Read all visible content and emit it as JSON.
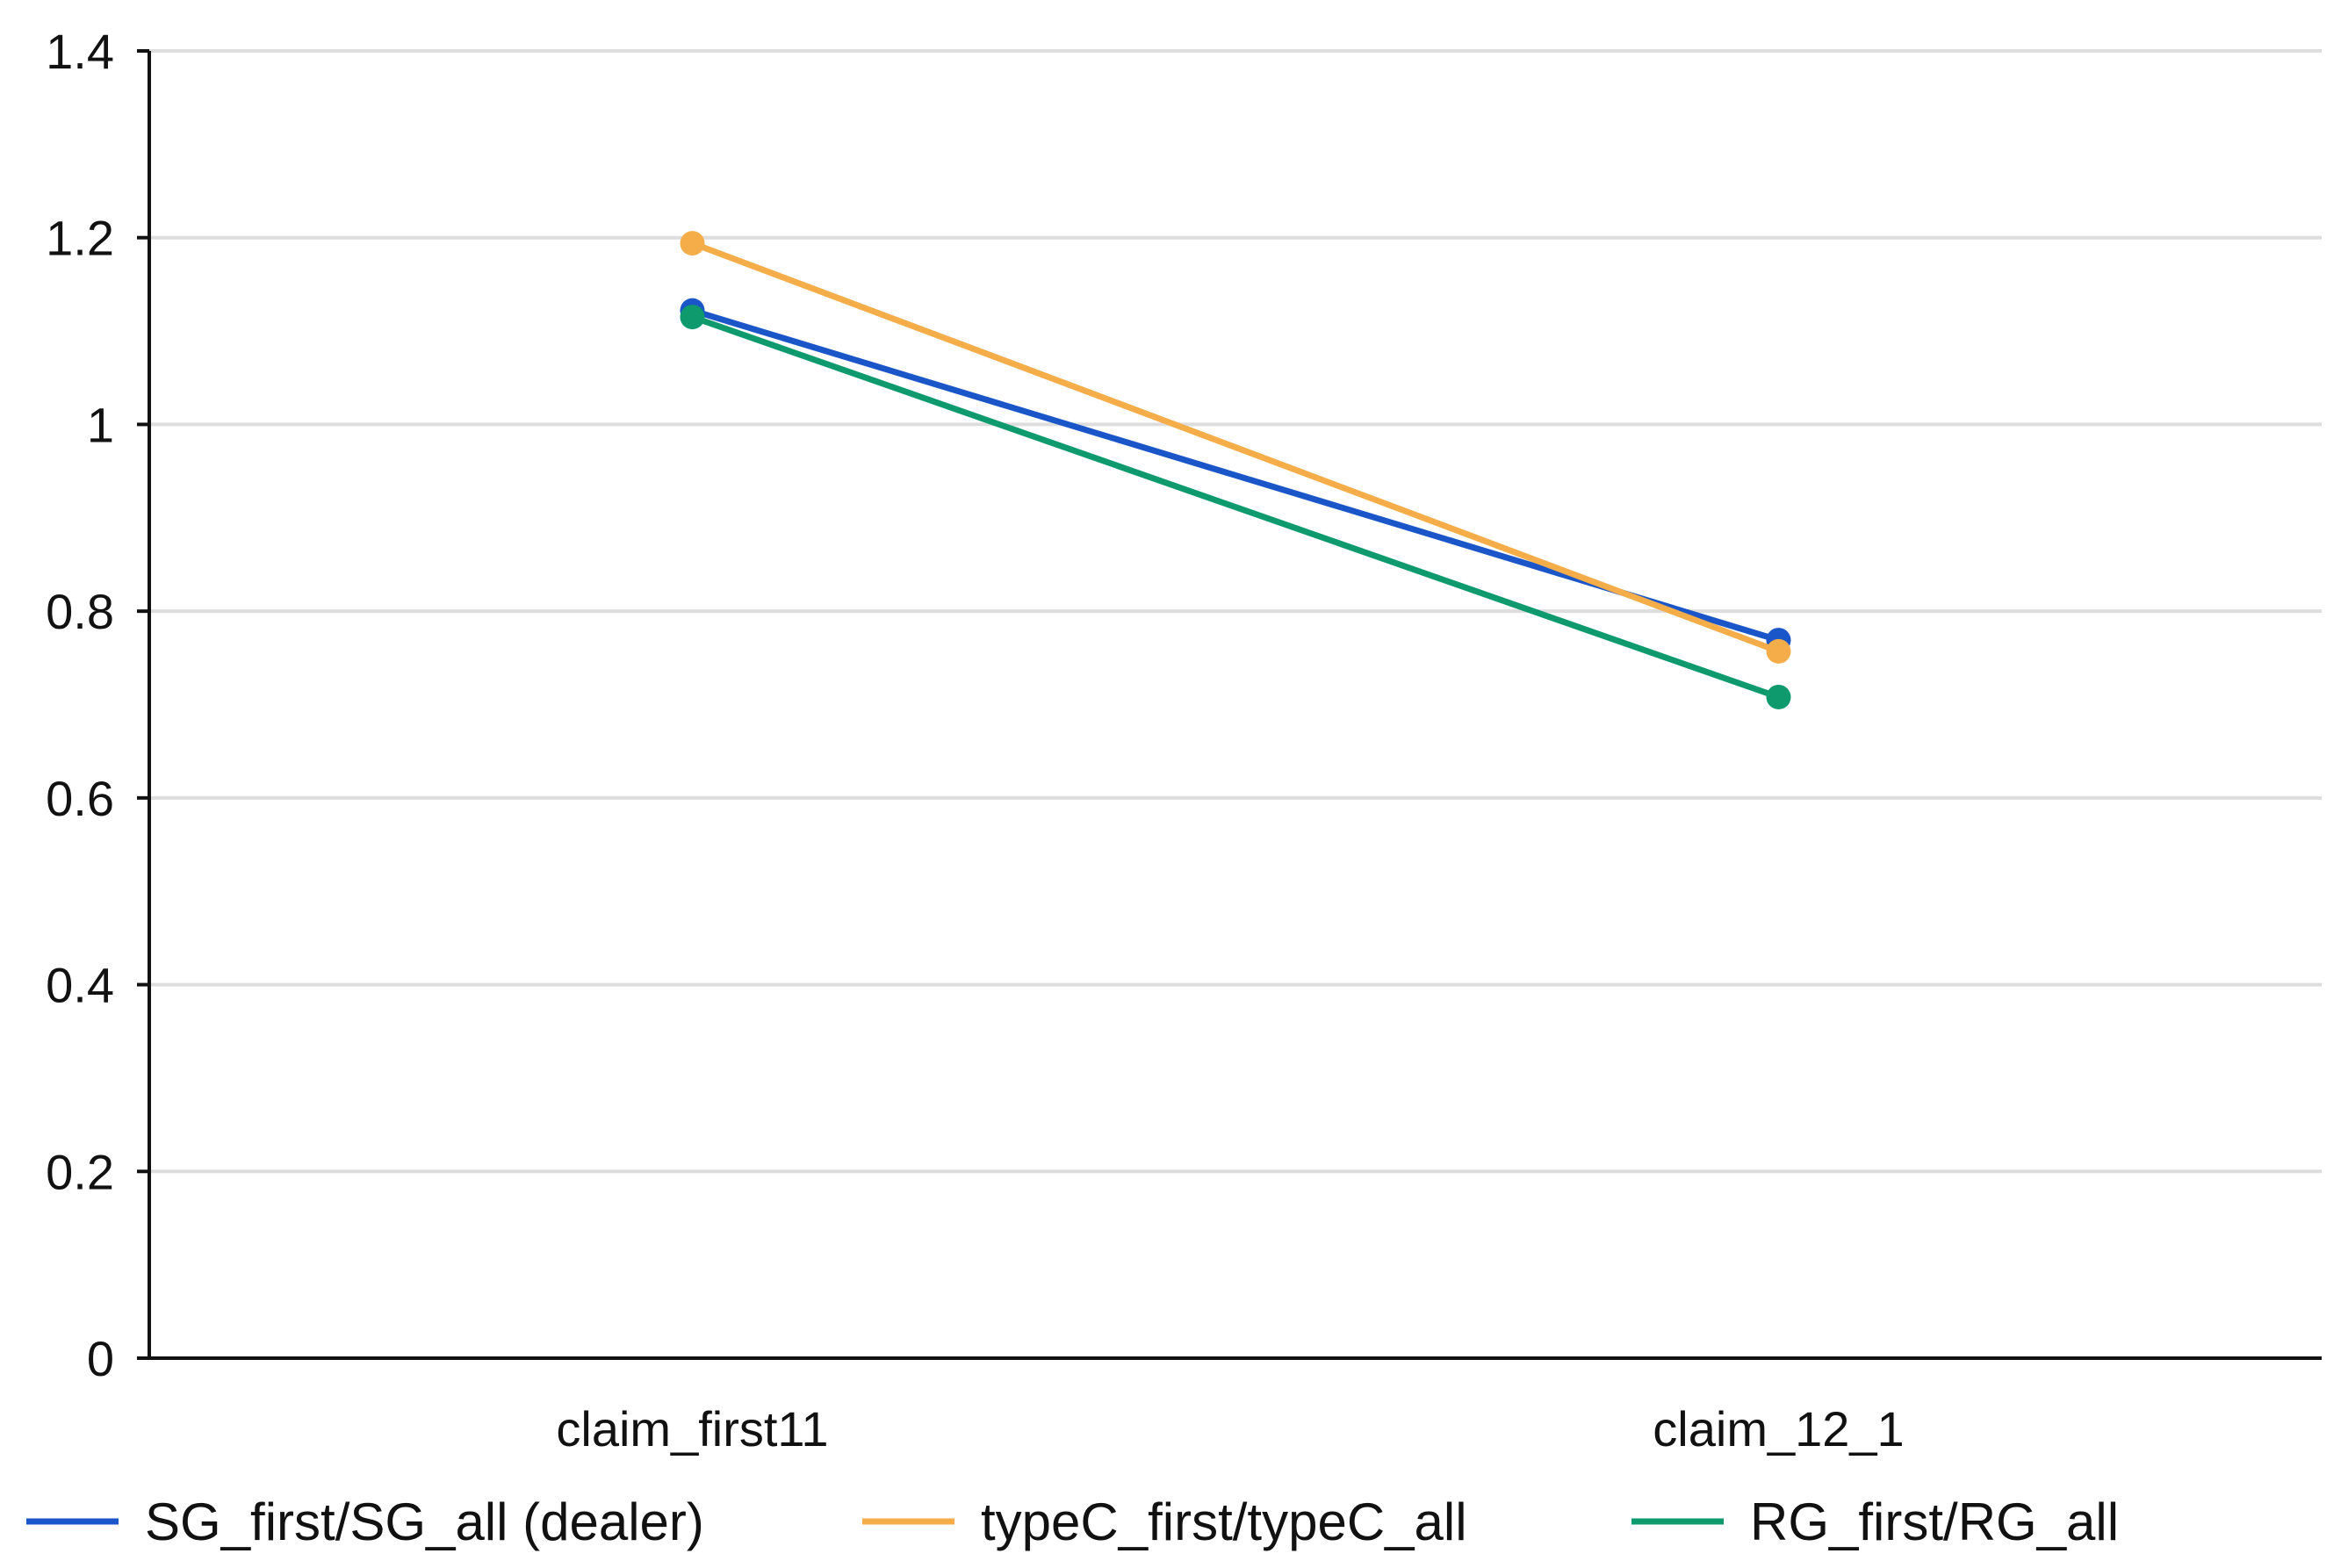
{
  "chart_data": {
    "type": "line",
    "title": "",
    "xlabel": "",
    "ylabel": "",
    "categories": [
      "claim_first11",
      "claim_12_1"
    ],
    "ylim": [
      0,
      1.4
    ],
    "yticks": [
      0,
      0.2,
      0.4,
      0.6,
      0.8,
      1,
      1.2,
      1.4
    ],
    "ytick_labels": [
      "0",
      "0.2",
      "0.4",
      "0.6",
      "0.8",
      "1",
      "1.2",
      "1.4"
    ],
    "grid": true,
    "legend_position": "bottom",
    "series": [
      {
        "name": "SG_first/SG_all (dealer)",
        "color": "#1a56c8",
        "values": [
          1.122,
          0.769
        ]
      },
      {
        "name": "typeC_first/typeC_all",
        "color": "#f5ad4a",
        "values": [
          1.194,
          0.757
        ]
      },
      {
        "name": "RG_first/RG_all",
        "color": "#0e9a6c",
        "values": [
          1.115,
          0.708
        ]
      }
    ]
  }
}
